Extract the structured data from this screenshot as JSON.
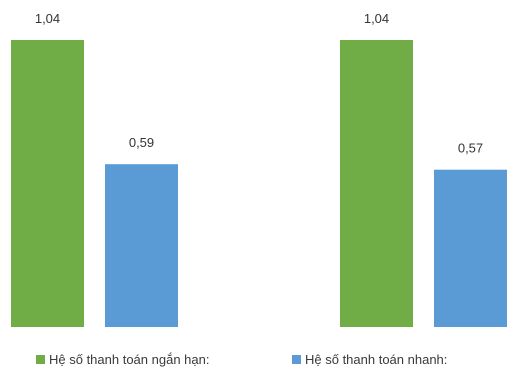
{
  "chart_data": {
    "type": "bar",
    "title": "",
    "xlabel": "",
    "ylabel": "",
    "ylim": [
      0,
      1.1
    ],
    "grid": false,
    "legend_position": "bottom",
    "groups": [
      "",
      ""
    ],
    "series": [
      {
        "name": "Hệ số thanh toán ngắn hạn:",
        "color": "#70AD47",
        "values": [
          1.04,
          1.04
        ],
        "labels": [
          "1,04",
          "1,04"
        ]
      },
      {
        "name": "Hệ số thanh toán nhanh:",
        "color": "#5B9BD5",
        "values": [
          0.59,
          0.57
        ],
        "labels": [
          "0,59",
          "0,57"
        ]
      }
    ]
  }
}
